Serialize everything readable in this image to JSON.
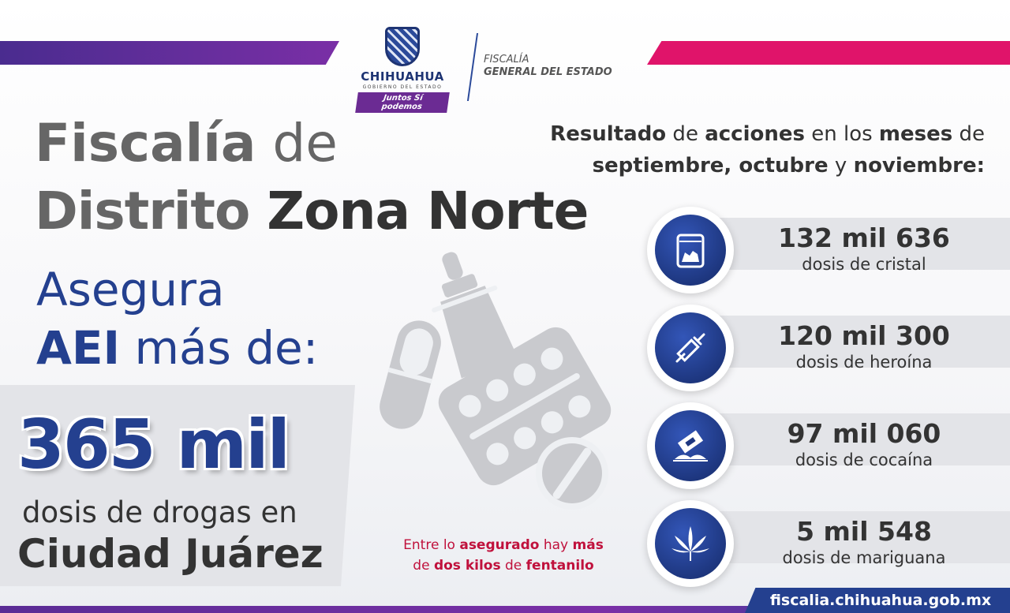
{
  "header": {
    "logo_name": "CHIHUAHUA",
    "logo_sub": "GOBIERNO DEL ESTADO",
    "logo_tag": "Juntos Sí podemos",
    "fiscalia_line1": "FISCALÍA",
    "fiscalia_line2": "GENERAL DEL ESTADO"
  },
  "title": {
    "line1_bold": "Fiscalía",
    "line1_light": " de",
    "line2_a": "Distrito ",
    "line2_b": "Zona Norte"
  },
  "asegura": {
    "line1": "Asegura",
    "line2_bold": "AEI",
    "line2_rest": " más de:"
  },
  "main_figure": {
    "number": "365 mil",
    "line1": "dosis de drogas en",
    "line2": "Ciudad Juárez"
  },
  "note": {
    "p1": "Entre lo ",
    "p2": "asegurado",
    "p3": " hay ",
    "p4": "más",
    "p5": "de ",
    "p6": "dos kilos",
    "p7": " de ",
    "p8": "fentanilo"
  },
  "results_heading": {
    "w1": "Resultado",
    "w2": " de ",
    "w3": "acciones",
    "w4": " en los ",
    "w5": "meses",
    "w6": " de",
    "w7": "septiembre, octubre",
    "w8": " y ",
    "w9": "noviembre:"
  },
  "stats": [
    {
      "number": "132 mil 636",
      "label": "dosis de cristal",
      "icon": "crystal-bag-icon"
    },
    {
      "number": "120 mil 300",
      "label": "dosis de heroína",
      "icon": "syringe-icon"
    },
    {
      "number": "97 mil 060",
      "label": "dosis de cocaína",
      "icon": "razor-powder-icon"
    },
    {
      "number": "5 mil 548",
      "label": "dosis de mariguana",
      "icon": "cannabis-leaf-icon"
    }
  ],
  "footer": {
    "url": "fiscalia.chihuahua.gob.mx"
  },
  "colors": {
    "blue": "#24408f",
    "purple": "#6b2b93",
    "magenta": "#e0146a",
    "red_text": "#c0113c",
    "gray_panel": "#e3e4e8"
  }
}
